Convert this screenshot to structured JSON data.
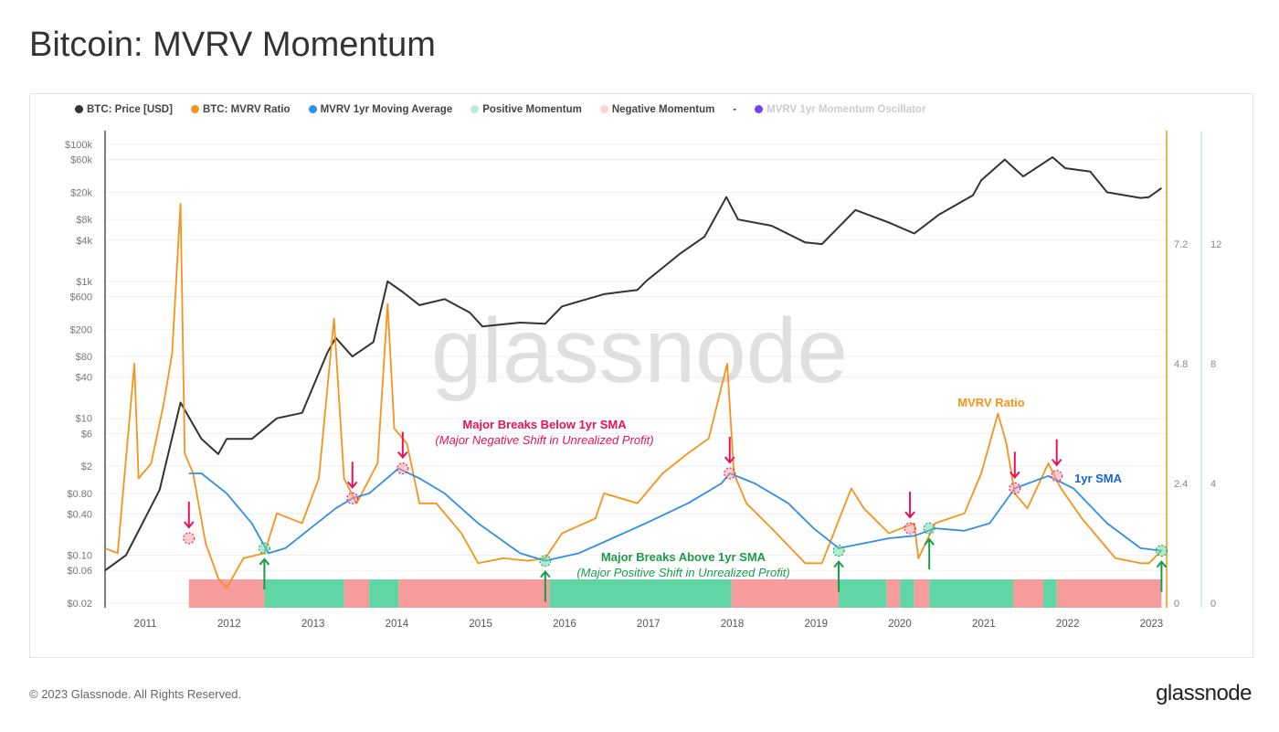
{
  "title": "Bitcoin: MVRV Momentum",
  "footer": "© 2023 Glassnode. All Rights Reserved.",
  "brand": "glassnode",
  "chart_data": {
    "type": "line",
    "title": "Bitcoin: MVRV Momentum",
    "watermark": "glassnode",
    "legend": [
      {
        "name": "BTC: Price [USD]",
        "color": "#333333"
      },
      {
        "name": "BTC: MVRV Ratio",
        "color": "#f7931a"
      },
      {
        "name": "MVRV 1yr Moving Average",
        "color": "#2f8fe8"
      },
      {
        "name": "Positive Momentum",
        "color": "#b9ebd7"
      },
      {
        "name": "Negative Momentum",
        "color": "#fbd3d3"
      },
      {
        "name": "-",
        "color": "#444444"
      },
      {
        "name": "MVRV 1yr Momentum Oscillator",
        "color": "#7b3ff2",
        "disabled": true
      }
    ],
    "legend_placement": "top-left",
    "x_ticks": [
      "2011",
      "2012",
      "2013",
      "2014",
      "2015",
      "2016",
      "2017",
      "2018",
      "2019",
      "2020",
      "2021",
      "2022",
      "2023"
    ],
    "xlim": [
      2010.55,
      2023.2
    ],
    "y_left": {
      "scale": "log",
      "ticks": [
        "$100k",
        "$60k",
        "$20k",
        "$8k",
        "$4k",
        "$1k",
        "$600",
        "$200",
        "$80",
        "$40",
        "$10",
        "$6",
        "$2",
        "$0.80",
        "$0.40",
        "$0.10",
        "$0.06",
        "$0.02"
      ],
      "tick_values": [
        100000,
        60000,
        20000,
        8000,
        4000,
        1000,
        600,
        200,
        80,
        40,
        10,
        6,
        2,
        0.8,
        0.4,
        0.1,
        0.06,
        0.02
      ],
      "range": [
        0.02,
        100000
      ]
    },
    "y_right1": {
      "ticks": [
        "0",
        "2.4",
        "4.8",
        "7.2"
      ],
      "tick_values": [
        0,
        2.4,
        4.8,
        7.2
      ],
      "range": [
        0,
        9.2
      ],
      "color": "#f7931a"
    },
    "y_right2": {
      "ticks": [
        "0",
        "4",
        "8",
        "12"
      ],
      "tick_values": [
        0,
        4,
        8,
        12
      ],
      "color": "#b9ebd7"
    },
    "series": [
      {
        "name": "BTC: Price [USD]",
        "color": "#333333",
        "axis": "left",
        "x": [
          2010.55,
          2010.8,
          2011.0,
          2011.2,
          2011.45,
          2011.7,
          2011.9,
          2012.0,
          2012.3,
          2012.6,
          2012.9,
          2013.2,
          2013.3,
          2013.5,
          2013.75,
          2013.92,
          2014.1,
          2014.3,
          2014.6,
          2014.9,
          2015.05,
          2015.5,
          2015.8,
          2016.0,
          2016.5,
          2016.9,
          2017.0,
          2017.4,
          2017.7,
          2017.96,
          2018.1,
          2018.5,
          2018.9,
          2019.1,
          2019.5,
          2019.9,
          2020.2,
          2020.5,
          2020.9,
          2021.0,
          2021.28,
          2021.5,
          2021.85,
          2022.0,
          2022.3,
          2022.5,
          2022.9,
          2023.0,
          2023.15
        ],
        "values": [
          0.06,
          0.1,
          0.3,
          0.9,
          17,
          5,
          3,
          5,
          5,
          10,
          12,
          90,
          150,
          80,
          130,
          1000,
          700,
          450,
          550,
          350,
          220,
          250,
          240,
          430,
          650,
          750,
          1000,
          2500,
          4500,
          17000,
          8000,
          6500,
          3700,
          3500,
          11000,
          7200,
          5000,
          9500,
          18000,
          30000,
          60000,
          34000,
          65000,
          45000,
          40000,
          20000,
          16500,
          17000,
          23000
        ]
      },
      {
        "name": "BTC: MVRV Ratio",
        "color": "#f7931a",
        "axis": "right1",
        "x": [
          2010.55,
          2010.7,
          2010.9,
          2010.95,
          2011.1,
          2011.25,
          2011.35,
          2011.45,
          2011.5,
          2011.6,
          2011.75,
          2011.9,
          2012.0,
          2012.2,
          2012.45,
          2012.6,
          2012.9,
          2013.1,
          2013.28,
          2013.4,
          2013.55,
          2013.8,
          2013.92,
          2014.0,
          2014.15,
          2014.3,
          2014.5,
          2014.8,
          2015.0,
          2015.3,
          2015.6,
          2015.8,
          2016.0,
          2016.4,
          2016.5,
          2016.9,
          2017.2,
          2017.5,
          2017.75,
          2017.97,
          2018.05,
          2018.2,
          2018.5,
          2018.9,
          2019.1,
          2019.45,
          2019.6,
          2019.9,
          2020.2,
          2020.25,
          2020.45,
          2020.8,
          2021.0,
          2021.2,
          2021.3,
          2021.4,
          2021.55,
          2021.8,
          2021.95,
          2022.2,
          2022.45,
          2022.6,
          2022.9,
          2023.0,
          2023.15
        ],
        "values": [
          1.1,
          1.0,
          4.8,
          2.5,
          2.8,
          4.0,
          5.0,
          8.0,
          3.0,
          2.6,
          1.2,
          0.5,
          0.3,
          0.9,
          1.0,
          1.8,
          1.6,
          2.5,
          5.7,
          2.5,
          2.0,
          2.8,
          6.0,
          3.5,
          3.2,
          2.0,
          2.0,
          1.4,
          0.8,
          0.9,
          0.85,
          0.9,
          1.4,
          1.7,
          2.2,
          2.0,
          2.6,
          3.0,
          3.3,
          4.8,
          2.6,
          2.0,
          1.5,
          0.8,
          0.8,
          2.3,
          1.9,
          1.4,
          1.6,
          0.9,
          1.6,
          1.8,
          2.6,
          3.8,
          3.2,
          2.2,
          1.9,
          2.8,
          2.3,
          1.7,
          1.2,
          0.9,
          0.8,
          0.8,
          1.05
        ]
      },
      {
        "name": "MVRV 1yr Moving Average",
        "color": "#2f8fe8",
        "axis": "right1",
        "x": [
          2011.55,
          2011.7,
          2012.0,
          2012.3,
          2012.5,
          2012.7,
          2013.0,
          2013.3,
          2013.5,
          2013.7,
          2014.05,
          2014.3,
          2014.6,
          2015.0,
          2015.5,
          2015.8,
          2016.2,
          2016.6,
          2017.0,
          2017.5,
          2017.9,
          2018.0,
          2018.3,
          2018.7,
          2019.0,
          2019.3,
          2019.6,
          2019.9,
          2020.2,
          2020.45,
          2020.8,
          2021.1,
          2021.4,
          2021.8,
          2022.1,
          2022.5,
          2022.9,
          2023.15
        ],
        "values": [
          2.6,
          2.6,
          2.2,
          1.6,
          1.0,
          1.1,
          1.5,
          1.9,
          2.1,
          2.2,
          2.7,
          2.5,
          2.2,
          1.6,
          1.0,
          0.85,
          1.0,
          1.3,
          1.6,
          2.0,
          2.4,
          2.6,
          2.4,
          2.0,
          1.5,
          1.1,
          1.2,
          1.3,
          1.35,
          1.5,
          1.45,
          1.6,
          2.3,
          2.55,
          2.3,
          1.6,
          1.1,
          1.05
        ]
      }
    ],
    "momentum": [
      {
        "from": 2011.55,
        "to": 2012.45,
        "state": "negative"
      },
      {
        "from": 2012.45,
        "to": 2013.4,
        "state": "positive"
      },
      {
        "from": 2013.4,
        "to": 2013.7,
        "state": "negative"
      },
      {
        "from": 2013.7,
        "to": 2014.05,
        "state": "positive"
      },
      {
        "from": 2014.05,
        "to": 2015.85,
        "state": "negative"
      },
      {
        "from": 2015.85,
        "to": 2018.02,
        "state": "positive"
      },
      {
        "from": 2018.02,
        "to": 2019.3,
        "state": "negative"
      },
      {
        "from": 2019.3,
        "to": 2019.87,
        "state": "positive"
      },
      {
        "from": 2019.87,
        "to": 2020.03,
        "state": "negative"
      },
      {
        "from": 2020.03,
        "to": 2020.2,
        "state": "positive"
      },
      {
        "from": 2020.2,
        "to": 2020.38,
        "state": "negative"
      },
      {
        "from": 2020.38,
        "to": 2021.38,
        "state": "positive"
      },
      {
        "from": 2021.38,
        "to": 2021.74,
        "state": "negative"
      },
      {
        "from": 2021.74,
        "to": 2021.9,
        "state": "positive"
      },
      {
        "from": 2021.9,
        "to": 2023.15,
        "state": "negative"
      }
    ],
    "breaks_below": [
      {
        "x": 2011.55,
        "y": 1.3
      },
      {
        "x": 2013.5,
        "y": 2.1
      },
      {
        "x": 2014.1,
        "y": 2.7
      },
      {
        "x": 2018.0,
        "y": 2.6
      },
      {
        "x": 2020.15,
        "y": 1.5
      },
      {
        "x": 2021.4,
        "y": 2.3
      },
      {
        "x": 2021.9,
        "y": 2.55
      }
    ],
    "breaks_above": [
      {
        "x": 2012.45,
        "y": 1.1
      },
      {
        "x": 2015.8,
        "y": 0.85
      },
      {
        "x": 2019.3,
        "y": 1.05
      },
      {
        "x": 2020.38,
        "y": 1.5
      },
      {
        "x": 2023.15,
        "y": 1.05
      }
    ],
    "annotations": {
      "below_title": "Major Breaks Below 1yr SMA",
      "below_sub": "(Major Negative Shift in Unrealized Profit)",
      "above_title": "Major Breaks Above 1yr SMA",
      "above_sub": "(Major Positive Shift in Unrealized Profit)",
      "mvrv_label": "MVRV Ratio",
      "sma_label": "1yr SMA"
    }
  }
}
